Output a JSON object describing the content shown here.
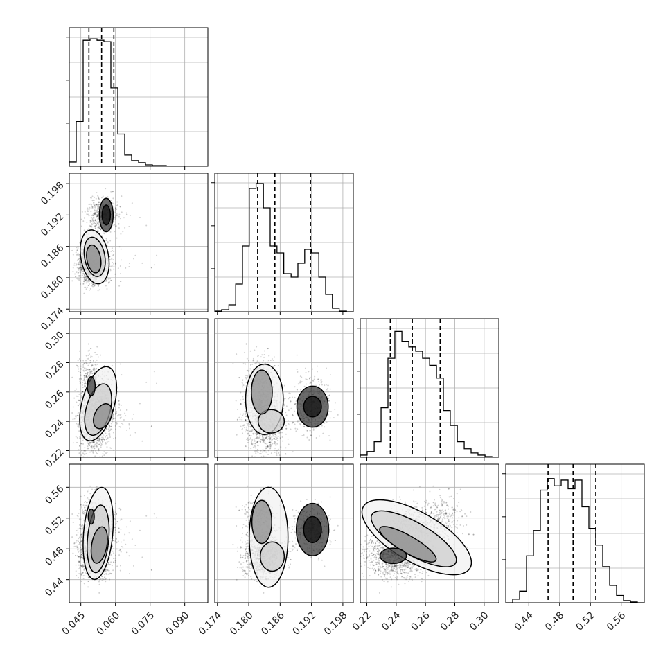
{
  "chart_data": {
    "type": "corner",
    "params": [
      {
        "ticks": [
          0.045,
          0.06,
          0.075,
          0.09
        ],
        "tick_labels": [
          "0.045",
          "0.060",
          "0.075",
          "0.090"
        ],
        "range": [
          0.04,
          0.1
        ]
      },
      {
        "ticks": [
          0.174,
          0.18,
          0.186,
          0.192,
          0.198
        ],
        "tick_labels": [
          "0.174",
          "0.180",
          "0.186",
          "0.192",
          "0.198"
        ],
        "range": [
          0.1735,
          0.2
        ]
      },
      {
        "ticks": [
          0.22,
          0.24,
          0.26,
          0.28,
          0.3
        ],
        "tick_labels": [
          "0.22",
          "0.24",
          "0.26",
          "0.28",
          "0.30"
        ],
        "range": [
          0.2155,
          0.31
        ]
      },
      {
        "ticks": [
          0.44,
          0.48,
          0.52,
          0.56
        ],
        "tick_labels": [
          "0.44",
          "0.48",
          "0.52",
          "0.56"
        ],
        "range": [
          0.41,
          0.59
        ]
      }
    ],
    "quantiles": [
      [
        0.0485,
        0.054,
        0.0593
      ],
      [
        0.1817,
        0.185,
        0.1918
      ],
      [
        0.236,
        0.251,
        0.27
      ],
      [
        0.465,
        0.4975,
        0.527
      ]
    ],
    "histograms": [
      {
        "bin_edges": [
          0.04,
          0.043,
          0.046,
          0.049,
          0.052,
          0.055,
          0.058,
          0.061,
          0.064,
          0.067,
          0.07,
          0.073,
          0.076,
          0.079,
          0.082,
          0.085,
          0.088,
          0.091,
          0.094,
          0.097,
          0.1
        ],
        "counts": [
          6,
          64,
          180,
          182,
          180,
          178,
          112,
          46,
          16,
          8,
          5,
          2,
          1,
          1,
          0,
          0,
          0,
          0,
          0,
          0
        ],
        "ymax": 198
      },
      {
        "bin_edges": [
          0.1735,
          0.1748,
          0.1762,
          0.1775,
          0.1788,
          0.1801,
          0.1814,
          0.1828,
          0.1841,
          0.1854,
          0.1867,
          0.1881,
          0.1894,
          0.1907,
          0.192,
          0.1934,
          0.1947,
          0.196,
          0.1973,
          0.1987,
          0.2
        ],
        "counts": [
          1,
          3,
          10,
          40,
          95,
          178,
          185,
          150,
          95,
          85,
          55,
          50,
          70,
          90,
          85,
          50,
          25,
          5,
          1,
          0
        ],
        "ymax": 200
      },
      {
        "bin_edges": [
          0.2155,
          0.2202,
          0.225,
          0.2297,
          0.2344,
          0.2391,
          0.2439,
          0.2486,
          0.2533,
          0.258,
          0.2628,
          0.2675,
          0.2722,
          0.2769,
          0.2817,
          0.2864,
          0.2911,
          0.2958,
          0.3006,
          0.3053,
          0.31
        ],
        "counts": [
          3,
          8,
          22,
          70,
          140,
          178,
          164,
          156,
          150,
          140,
          130,
          112,
          66,
          45,
          22,
          12,
          6,
          3,
          1,
          0
        ],
        "ymax": 196
      },
      {
        "bin_edges": [
          0.41,
          0.419,
          0.428,
          0.437,
          0.446,
          0.455,
          0.464,
          0.473,
          0.482,
          0.491,
          0.5,
          0.509,
          0.518,
          0.527,
          0.536,
          0.545,
          0.554,
          0.563,
          0.572,
          0.581,
          0.59
        ],
        "counts": [
          0,
          5,
          16,
          65,
          100,
          156,
          172,
          162,
          170,
          158,
          170,
          133,
          103,
          80,
          50,
          24,
          10,
          3,
          1,
          0
        ],
        "ymax": 192
      }
    ],
    "scatter_components": [
      {
        "weight": 0.55,
        "mean": [
          0.0505,
          0.183,
          0.24,
          0.47
        ],
        "sd": [
          0.0035,
          0.002,
          0.01,
          0.014
        ]
      },
      {
        "weight": 0.25,
        "mean": [
          0.054,
          0.192,
          0.25,
          0.505
        ],
        "sd": [
          0.0035,
          0.0018,
          0.01,
          0.014
        ]
      },
      {
        "weight": 0.2,
        "mean": [
          0.049,
          0.182,
          0.268,
          0.52
        ],
        "sd": [
          0.0025,
          0.0015,
          0.009,
          0.016
        ]
      }
    ],
    "contours": {
      "1,0": [
        {
          "cx": 0.051,
          "cy": 0.184,
          "rx": 0.006,
          "ry": 0.0052,
          "angle": -10
        },
        {
          "cx": 0.051,
          "cy": 0.184,
          "rx": 0.0044,
          "ry": 0.0038,
          "angle": -10
        },
        {
          "cx": 0.0506,
          "cy": 0.1836,
          "rx": 0.003,
          "ry": 0.0027,
          "angle": -10
        },
        {
          "cx": 0.056,
          "cy": 0.192,
          "rx": 0.003,
          "ry": 0.0032,
          "angle": 0
        },
        {
          "cx": 0.056,
          "cy": 0.192,
          "rx": 0.0018,
          "ry": 0.0019,
          "angle": 0
        }
      ],
      "2,0": [
        {
          "cx": 0.0525,
          "cy": 0.252,
          "rx": 0.007,
          "ry": 0.026,
          "angle": 15
        },
        {
          "cx": 0.0525,
          "cy": 0.248,
          "rx": 0.0052,
          "ry": 0.018,
          "angle": 15
        },
        {
          "cx": 0.0545,
          "cy": 0.2435,
          "rx": 0.0036,
          "ry": 0.009,
          "angle": 25
        },
        {
          "cx": 0.0495,
          "cy": 0.264,
          "rx": 0.0017,
          "ry": 0.0065,
          "angle": 0
        }
      ],
      "2,1": [
        {
          "cx": 0.183,
          "cy": 0.255,
          "rx": 0.0036,
          "ry": 0.024,
          "angle": 0
        },
        {
          "cx": 0.1843,
          "cy": 0.24,
          "rx": 0.0025,
          "ry": 0.008,
          "angle": 0
        },
        {
          "cx": 0.1825,
          "cy": 0.26,
          "rx": 0.002,
          "ry": 0.015,
          "angle": 0
        },
        {
          "cx": 0.1922,
          "cy": 0.25,
          "rx": 0.003,
          "ry": 0.014,
          "angle": 0
        },
        {
          "cx": 0.1922,
          "cy": 0.25,
          "rx": 0.0017,
          "ry": 0.007,
          "angle": 0
        }
      ],
      "3,0": [
        {
          "cx": 0.0525,
          "cy": 0.5,
          "rx": 0.0063,
          "ry": 0.06,
          "angle": 5
        },
        {
          "cx": 0.0525,
          "cy": 0.493,
          "rx": 0.0046,
          "ry": 0.044,
          "angle": 5
        },
        {
          "cx": 0.053,
          "cy": 0.485,
          "rx": 0.0033,
          "ry": 0.024,
          "angle": 10
        },
        {
          "cx": 0.0495,
          "cy": 0.522,
          "rx": 0.0013,
          "ry": 0.01,
          "angle": 0
        }
      ],
      "3,1": [
        {
          "cx": 0.1838,
          "cy": 0.495,
          "rx": 0.0037,
          "ry": 0.065,
          "angle": 0
        },
        {
          "cx": 0.1845,
          "cy": 0.47,
          "rx": 0.0023,
          "ry": 0.019,
          "angle": 0
        },
        {
          "cx": 0.1825,
          "cy": 0.515,
          "rx": 0.0019,
          "ry": 0.028,
          "angle": 0
        },
        {
          "cx": 0.1922,
          "cy": 0.505,
          "rx": 0.0031,
          "ry": 0.034,
          "angle": 0
        },
        {
          "cx": 0.1922,
          "cy": 0.505,
          "rx": 0.0017,
          "ry": 0.017,
          "angle": 0
        }
      ],
      "3,2": [
        {
          "cx": 0.254,
          "cy": 0.495,
          "rx": 0.042,
          "ry": 0.032,
          "angle": 30
        },
        {
          "cx": 0.252,
          "cy": 0.493,
          "rx": 0.033,
          "ry": 0.021,
          "angle": 30
        },
        {
          "cx": 0.248,
          "cy": 0.486,
          "rx": 0.022,
          "ry": 0.011,
          "angle": 30
        },
        {
          "cx": 0.238,
          "cy": 0.471,
          "rx": 0.009,
          "ry": 0.01,
          "angle": 0
        }
      ]
    },
    "n_scatter_points": 1800,
    "grid": true,
    "colors": {
      "line": "#000000",
      "grid": "#b0b0b0",
      "scatter": "#000000",
      "background": "#ffffff"
    }
  }
}
